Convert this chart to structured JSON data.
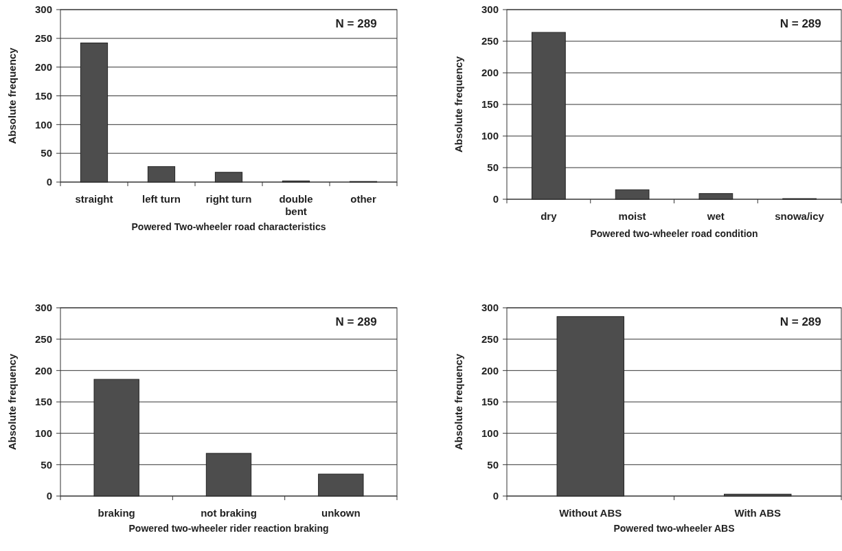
{
  "chart_data": [
    {
      "type": "bar",
      "xlabel": "Powered Two-wheeler road characteristics",
      "ylabel": "Absolute frequency",
      "categories": [
        "straight",
        "left turn",
        "right turn",
        "double bent",
        "other"
      ],
      "values": [
        242,
        27,
        17,
        2,
        1
      ],
      "color": "#4d4d4d",
      "ylim": [
        0,
        300
      ],
      "yticks": [
        0,
        50,
        100,
        150,
        200,
        250,
        300
      ],
      "grid": "y",
      "annotations": [
        "N = 289"
      ]
    },
    {
      "type": "bar",
      "xlabel": "Powered two-wheeler road condition",
      "ylabel": "Absolute frequency",
      "categories": [
        "dry",
        "moist",
        "wet",
        "snowa/icy"
      ],
      "values": [
        264,
        15,
        9,
        1
      ],
      "color": "#4d4d4d",
      "ylim": [
        0,
        300
      ],
      "yticks": [
        0,
        50,
        100,
        150,
        200,
        250,
        300
      ],
      "grid": "y",
      "annotations": [
        "N = 289"
      ]
    },
    {
      "type": "bar",
      "xlabel": "Powered two-wheeler rider reaction braking",
      "ylabel": "Absolute frequency",
      "categories": [
        "braking",
        "not braking",
        "unkown"
      ],
      "values": [
        186,
        68,
        35
      ],
      "color": "#4d4d4d",
      "ylim": [
        0,
        300
      ],
      "yticks": [
        0,
        50,
        100,
        150,
        200,
        250,
        300
      ],
      "grid": "y",
      "annotations": [
        "N = 289"
      ]
    },
    {
      "type": "bar",
      "xlabel": "Powered two-wheeler ABS",
      "ylabel": "Absolute frequency",
      "categories": [
        "Without ABS",
        "With ABS"
      ],
      "values": [
        286,
        3
      ],
      "color": "#4d4d4d",
      "ylim": [
        0,
        300
      ],
      "yticks": [
        0,
        50,
        100,
        150,
        200,
        250,
        300
      ],
      "grid": "y",
      "annotations": [
        "N = 289"
      ]
    }
  ]
}
